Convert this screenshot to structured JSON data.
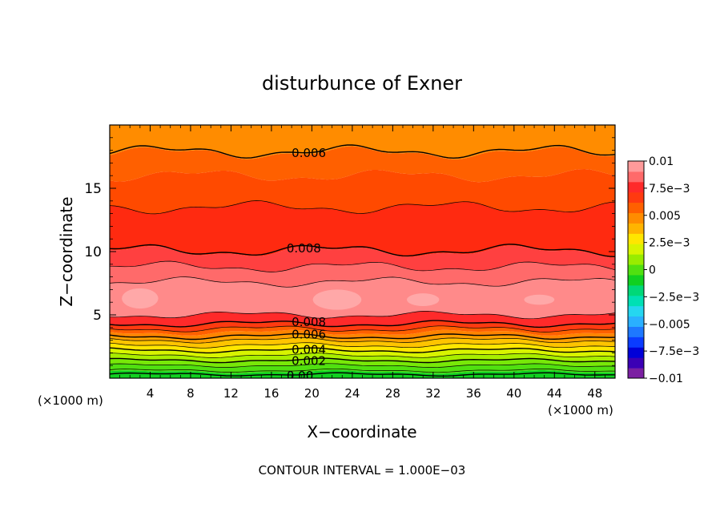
{
  "chart_data": {
    "type": "heatmap",
    "title": "disturbunce of Exner",
    "xlabel": "X−coordinate",
    "ylabel": "Z−coordinate",
    "x_unit_left": "(×1000 m)",
    "x_unit_right": "(×1000 m)",
    "footer": "CONTOUR INTERVAL = 1.000E−03",
    "xlim": [
      0,
      50
    ],
    "ylim": [
      0,
      20
    ],
    "x_ticks": [
      4,
      8,
      12,
      16,
      20,
      24,
      28,
      32,
      36,
      40,
      44,
      48
    ],
    "y_ticks": [
      5,
      10,
      15
    ],
    "colorbar": {
      "range": [
        -0.01,
        0.01
      ],
      "levels": [
        -0.01,
        -0.009,
        -0.008,
        -0.007,
        -0.006,
        -0.005,
        -0.004,
        -0.003,
        -0.002,
        -0.001,
        0,
        0.001,
        0.002,
        0.003,
        0.004,
        0.005,
        0.006,
        0.007,
        0.008,
        0.009,
        0.01
      ],
      "colors": [
        "#7b1fa2",
        "#3b00b5",
        "#0000d8",
        "#0a3cff",
        "#1e78ff",
        "#2ab0ff",
        "#25d6f0",
        "#00e0b4",
        "#00d878",
        "#10d020",
        "#50e010",
        "#98ec00",
        "#d8f400",
        "#ffe600",
        "#ffb400",
        "#ff8c00",
        "#ff6000",
        "#ff3a10",
        "#ff2a2a",
        "#ff6a6a",
        "#ff9a9a"
      ],
      "tick_values": [
        0.01,
        0.0075,
        0.005,
        0.0025,
        0,
        -0.0025,
        -0.005,
        -0.0075,
        -0.01
      ],
      "tick_labels": [
        "0.01",
        "7.5e−3",
        "0.005",
        "2.5e−3",
        "0",
        "−2.5e−3",
        "−0.005",
        "−7.5e−3",
        "−0.01"
      ]
    },
    "bands": [
      {
        "z_low": 0.0,
        "z_high": 0.5,
        "color": "#10d020"
      },
      {
        "z_low": 0.5,
        "z_high": 1.0,
        "color": "#50e010"
      },
      {
        "z_low": 1.0,
        "z_high": 1.4,
        "color": "#78e808"
      },
      {
        "z_low": 1.4,
        "z_high": 1.8,
        "color": "#a8ee00"
      },
      {
        "z_low": 1.8,
        "z_high": 2.2,
        "color": "#d8f400"
      },
      {
        "z_low": 2.2,
        "z_high": 2.6,
        "color": "#ffe600"
      },
      {
        "z_low": 2.6,
        "z_high": 3.0,
        "color": "#ffc400"
      },
      {
        "z_low": 3.0,
        "z_high": 3.3,
        "color": "#ffa000"
      },
      {
        "z_low": 3.3,
        "z_high": 3.6,
        "color": "#ff8400"
      },
      {
        "z_low": 3.6,
        "z_high": 3.9,
        "color": "#ff6000"
      },
      {
        "z_low": 3.9,
        "z_high": 4.3,
        "color": "#ff3a10"
      },
      {
        "z_low": 4.3,
        "z_high": 5.0,
        "color": "#ff2a2a"
      },
      {
        "z_low": 5.0,
        "z_high": 7.6,
        "color": "#ff8a8a"
      },
      {
        "z_low": 7.6,
        "z_high": 8.8,
        "color": "#ff6a6a"
      },
      {
        "z_low": 8.8,
        "z_high": 10.0,
        "color": "#ff4040"
      },
      {
        "z_low": 10.0,
        "z_high": 13.5,
        "color": "#ff2a10"
      },
      {
        "z_low": 13.5,
        "z_high": 16.0,
        "color": "#ff4a00"
      },
      {
        "z_low": 16.0,
        "z_high": 17.8,
        "color": "#ff6000"
      },
      {
        "z_low": 17.8,
        "z_high": 20.0,
        "color": "#ff8c00"
      }
    ],
    "highlights": [
      {
        "x": 3,
        "z": 6.3,
        "rx": 1.8,
        "rz": 0.8,
        "color": "#ffa8a8"
      },
      {
        "x": 22.5,
        "z": 6.2,
        "rx": 2.4,
        "rz": 0.8,
        "color": "#ffa8a8"
      },
      {
        "x": 31,
        "z": 6.2,
        "rx": 1.6,
        "rz": 0.5,
        "color": "#ffa8a8"
      },
      {
        "x": 42.5,
        "z": 6.2,
        "rx": 1.5,
        "rz": 0.4,
        "color": "#ffa8a8"
      }
    ],
    "contours": [
      {
        "z": 17.9,
        "label": "0.006",
        "label_x": 18.0,
        "bold": true
      },
      {
        "z": 13.5,
        "label": "",
        "bold": false
      },
      {
        "z": 10.1,
        "label": "0.008",
        "label_x": 17.5,
        "bold": true
      },
      {
        "z": 8.8,
        "label": "",
        "bold": false
      },
      {
        "z": 7.6,
        "label": "",
        "bold": false
      },
      {
        "z": 5.0,
        "label": "",
        "bold": false
      },
      {
        "z": 4.3,
        "label": "0.008",
        "label_x": 18.0,
        "bold": true
      },
      {
        "z": 3.9,
        "label": "",
        "bold": false
      },
      {
        "z": 3.3,
        "label": "0.006",
        "label_x": 18.0,
        "bold": true
      },
      {
        "z": 3.0,
        "label": "",
        "bold": false
      },
      {
        "z": 2.6,
        "label": "",
        "bold": false
      },
      {
        "z": 2.2,
        "label": "0.004",
        "label_x": 18.0,
        "bold": true
      },
      {
        "z": 1.8,
        "label": "",
        "bold": false
      },
      {
        "z": 1.4,
        "label": "0.002",
        "label_x": 18.0,
        "bold": true
      },
      {
        "z": 1.0,
        "label": "",
        "bold": false
      },
      {
        "z": 0.6,
        "label": "",
        "bold": false
      },
      {
        "z": 0.3,
        "label": "0.00",
        "label_x": 17.5,
        "bold": true
      }
    ]
  }
}
